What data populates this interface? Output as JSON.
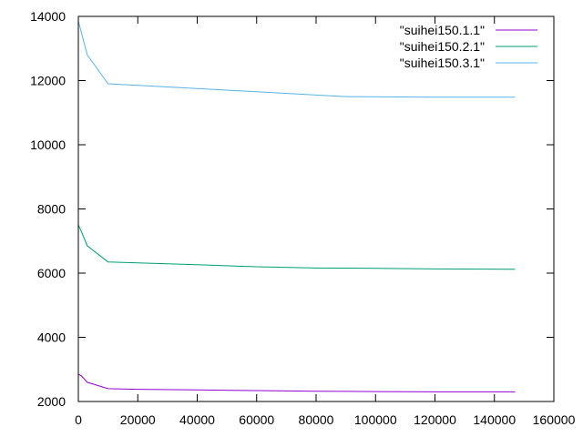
{
  "chart_data": {
    "type": "line",
    "title": "",
    "xlabel": "",
    "ylabel": "",
    "xlim": [
      0,
      160000
    ],
    "ylim": [
      2000,
      14000
    ],
    "xticks": [
      0,
      20000,
      40000,
      60000,
      80000,
      100000,
      120000,
      140000,
      160000
    ],
    "yticks": [
      2000,
      4000,
      6000,
      8000,
      10000,
      12000,
      14000
    ],
    "grid": false,
    "legend_position": "top-right",
    "series": [
      {
        "name": "\"suihei150.1.1\"",
        "color": "#9400d3",
        "x": [
          0,
          1000,
          3000,
          10000,
          20000,
          40000,
          60000,
          80000,
          100000,
          120000,
          147000
        ],
        "y": [
          2850,
          2800,
          2600,
          2400,
          2380,
          2360,
          2340,
          2320,
          2310,
          2300,
          2300
        ]
      },
      {
        "name": "\"suihei150.2.1\"",
        "color": "#009e73",
        "x": [
          0,
          1000,
          3000,
          10000,
          20000,
          40000,
          60000,
          80000,
          100000,
          120000,
          147000
        ],
        "y": [
          7500,
          7300,
          6850,
          6350,
          6320,
          6260,
          6200,
          6160,
          6150,
          6130,
          6120
        ]
      },
      {
        "name": "\"suihei150.3.1\"",
        "color": "#56b4e9",
        "x": [
          0,
          1000,
          3000,
          10000,
          20000,
          40000,
          60000,
          80000,
          90000,
          120000,
          147000
        ],
        "y": [
          13850,
          13500,
          12800,
          11900,
          11850,
          11750,
          11650,
          11550,
          11500,
          11480,
          11480
        ]
      }
    ]
  }
}
